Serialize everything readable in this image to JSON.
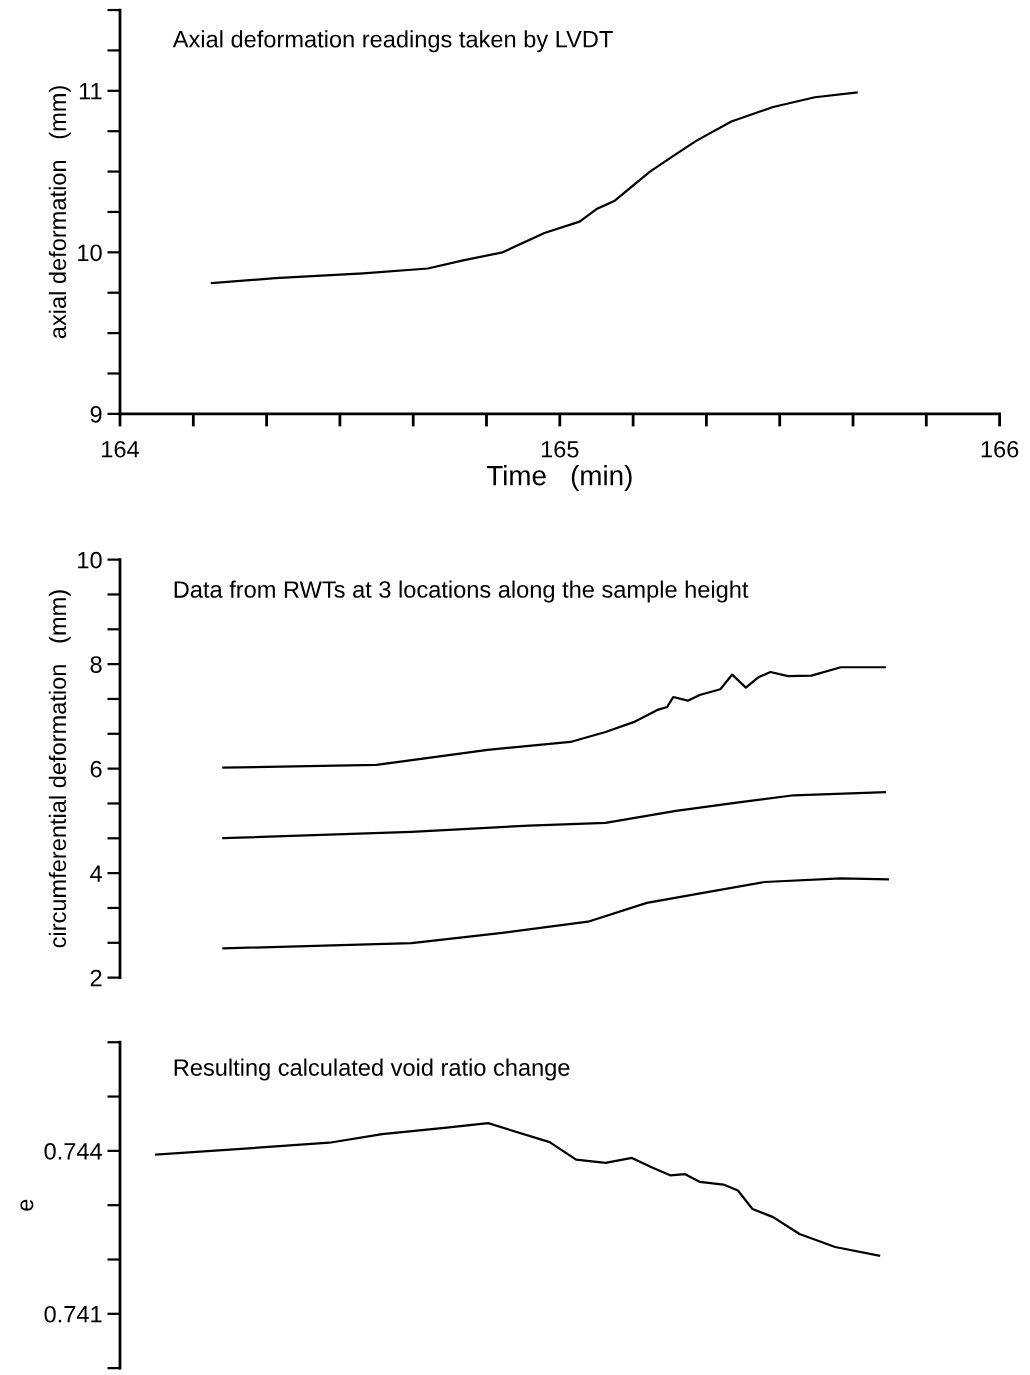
{
  "chart_data": [
    {
      "type": "line",
      "title": "Axial deformation readings taken by LVDT",
      "xlabel": "Time   (min)",
      "ylabel": "axial deformation   (mm)",
      "xlim": [
        164,
        166
      ],
      "xticks": [
        164,
        {
          "value": 164.1667,
          "label": null
        },
        {
          "value": 164.3333,
          "label": null
        },
        {
          "value": 164.5,
          "label": null
        },
        {
          "value": 164.6667,
          "label": null
        },
        {
          "value": 164.8333,
          "label": null
        },
        165,
        {
          "value": 165.1667,
          "label": null
        },
        {
          "value": 165.3333,
          "label": null
        },
        {
          "value": 165.5,
          "label": null
        },
        {
          "value": 165.6667,
          "label": null
        },
        {
          "value": 165.8333,
          "label": null
        },
        166
      ],
      "ylim": [
        9,
        11.5
      ],
      "yticks": [
        9,
        {
          "value": 9.25,
          "label": null
        },
        {
          "value": 9.5,
          "label": null
        },
        {
          "value": 9.75,
          "label": null
        },
        10,
        {
          "value": 10.25,
          "label": null
        },
        {
          "value": 10.5,
          "label": null
        },
        {
          "value": 10.75,
          "label": null
        },
        11,
        {
          "value": 11.25,
          "label": null
        },
        {
          "value": 11.5,
          "label": null
        }
      ],
      "series": [
        {
          "color": "#000000",
          "x": [
            164.209,
            164.353,
            164.553,
            164.7,
            164.78,
            164.87,
            164.965,
            165.045,
            165.085,
            165.125,
            165.205,
            165.26,
            165.31,
            165.39,
            165.485,
            165.58,
            165.675
          ],
          "values": [
            9.81,
            9.84,
            9.87,
            9.9,
            9.95,
            10.0,
            10.12,
            10.19,
            10.27,
            10.32,
            10.5,
            10.6,
            10.69,
            10.81,
            10.9,
            10.96,
            10.99
          ]
        }
      ]
    },
    {
      "type": "line",
      "title": "Data from RWTs at 3 locations along the sample height",
      "ylabel": "circumferential deformation   (mm)",
      "tick_labels": "y",
      "xlim": [
        164,
        166
      ],
      "ylim": [
        2,
        10
      ],
      "yticks": [
        2,
        {
          "value": 2.6667,
          "label": null
        },
        {
          "value": 3.3333,
          "label": null
        },
        4,
        {
          "value": 4.6667,
          "label": null
        },
        {
          "value": 5.3333,
          "label": null
        },
        6,
        {
          "value": 6.6667,
          "label": null
        },
        {
          "value": 7.3333,
          "label": null
        },
        8,
        {
          "value": 8.6667,
          "label": null
        },
        {
          "value": 9.3333,
          "label": null
        },
        10
      ],
      "series": [
        {
          "color": "#000000",
          "x": [
            164.235,
            164.583,
            164.836,
            165.024,
            165.104,
            165.171,
            165.224,
            165.244,
            165.258,
            165.291,
            165.318,
            165.365,
            165.392,
            165.423,
            165.452,
            165.479,
            165.519,
            165.572,
            165.639,
            165.739
          ],
          "values": [
            6.02,
            6.07,
            6.36,
            6.51,
            6.7,
            6.9,
            7.13,
            7.18,
            7.37,
            7.3,
            7.41,
            7.52,
            7.8,
            7.55,
            7.75,
            7.85,
            7.77,
            7.78,
            7.94,
            7.94
          ]
        },
        {
          "color": "#000000",
          "x": [
            164.235,
            164.663,
            164.93,
            165.104,
            165.264,
            165.411,
            165.532,
            165.739
          ],
          "values": [
            4.67,
            4.79,
            4.91,
            4.96,
            5.19,
            5.36,
            5.49,
            5.55
          ]
        },
        {
          "color": "#000000",
          "x": [
            164.235,
            164.663,
            164.864,
            165.064,
            165.198,
            165.332,
            165.465,
            165.639,
            165.746
          ],
          "values": [
            2.56,
            2.66,
            2.85,
            3.07,
            3.43,
            3.63,
            3.83,
            3.9,
            3.88
          ]
        }
      ]
    },
    {
      "type": "line",
      "title": "Resulting calculated void ratio change",
      "ylabel": "e",
      "tick_labels": "y",
      "xlim": [
        164,
        166
      ],
      "ylim": [
        0.74,
        0.746
      ],
      "yticks": [
        {
          "value": 0.74,
          "label": null
        },
        0.741,
        {
          "value": 0.742,
          "label": null
        },
        {
          "value": 0.743,
          "label": null
        },
        0.744,
        {
          "value": 0.745,
          "label": null
        },
        {
          "value": 0.746,
          "label": null
        }
      ],
      "series": [
        {
          "color": "#000000",
          "x": [
            164.082,
            164.476,
            164.596,
            164.743,
            164.837,
            164.977,
            165.037,
            165.104,
            165.164,
            165.211,
            165.251,
            165.285,
            165.318,
            165.372,
            165.405,
            165.438,
            165.485,
            165.545,
            165.626,
            165.726
          ],
          "values": [
            0.74393,
            0.74415,
            0.74431,
            0.74443,
            0.74451,
            0.74416,
            0.74384,
            0.74378,
            0.74387,
            0.74369,
            0.74355,
            0.74357,
            0.74343,
            0.74338,
            0.74327,
            0.74293,
            0.74278,
            0.74247,
            0.74223,
            0.74207
          ]
        }
      ]
    }
  ]
}
